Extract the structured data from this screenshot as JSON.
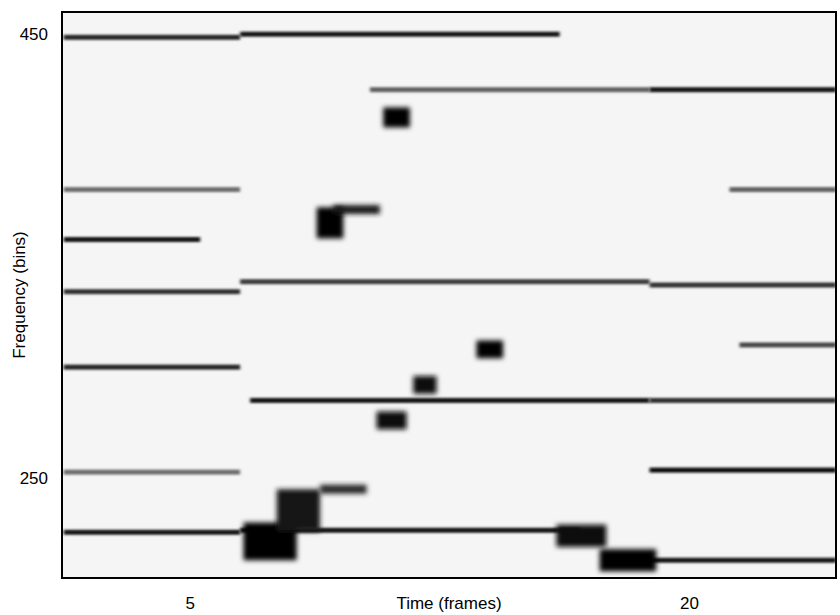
{
  "chart_data": {
    "type": "spectrogram",
    "x_label": "Time (frames)",
    "y_label": "Frequency (bins)",
    "xlim": [
      1.15,
      24.4
    ],
    "ylim": [
      205,
      460
    ],
    "xticks": [
      5,
      20
    ],
    "yticks": [
      250,
      450
    ],
    "color": "#000000",
    "tracks": [
      {
        "x": [
          1.2,
          6.5
        ],
        "y": 448.6,
        "level": 0.85
      },
      {
        "x": [
          1.2,
          6.5
        ],
        "y": 380,
        "level": 0.55
      },
      {
        "x": [
          1.2,
          5.3
        ],
        "y": 357.5,
        "level": 0.9
      },
      {
        "x": [
          1.2,
          6.5
        ],
        "y": 334,
        "level": 0.8
      },
      {
        "x": [
          1.2,
          6.5
        ],
        "y": 300,
        "level": 0.85
      },
      {
        "x": [
          1.2,
          6.5
        ],
        "y": 252.7,
        "level": 0.55
      },
      {
        "x": [
          1.2,
          6.5
        ],
        "y": 225.6,
        "level": 0.9
      },
      {
        "x": [
          6.5,
          16.1
        ],
        "y": 450,
        "level": 0.9
      },
      {
        "x": [
          10.4,
          18.8
        ],
        "y": 425,
        "level": 0.6
      },
      {
        "x": [
          6.5,
          18.8
        ],
        "y": 338.5,
        "level": 0.75
      },
      {
        "x": [
          6.8,
          18.8
        ],
        "y": 285,
        "level": 0.9
      },
      {
        "x": [
          6.5,
          16.7
        ],
        "y": 226.5,
        "level": 0.9
      },
      {
        "x": [
          18.8,
          24.4
        ],
        "y": 425,
        "level": 0.9
      },
      {
        "x": [
          21.2,
          24.4
        ],
        "y": 380,
        "level": 0.6
      },
      {
        "x": [
          18.8,
          24.4
        ],
        "y": 337,
        "level": 0.8
      },
      {
        "x": [
          21.5,
          24.4
        ],
        "y": 310,
        "level": 0.7
      },
      {
        "x": [
          18.8,
          24.4
        ],
        "y": 285,
        "level": 0.8
      },
      {
        "x": [
          18.8,
          24.4
        ],
        "y": 253.6,
        "level": 0.95
      },
      {
        "x": [
          18.8,
          24.4
        ],
        "y": 213,
        "level": 0.9
      }
    ],
    "blobs": [
      {
        "x": [
          10.8,
          11.6
        ],
        "y": [
          408,
          417
        ],
        "level": 1.0
      },
      {
        "x": [
          8.8,
          9.6
        ],
        "y": [
          358,
          372
        ],
        "level": 1.0
      },
      {
        "x": [
          9.3,
          10.7
        ],
        "y": [
          369,
          373
        ],
        "level": 0.9
      },
      {
        "x": [
          13.6,
          14.4
        ],
        "y": [
          304,
          312
        ],
        "level": 1.0
      },
      {
        "x": [
          11.7,
          12.4
        ],
        "y": [
          288,
          296
        ],
        "level": 0.95
      },
      {
        "x": [
          10.6,
          11.5
        ],
        "y": [
          272,
          280
        ],
        "level": 0.95
      },
      {
        "x": [
          6.6,
          8.2
        ],
        "y": [
          213,
          230
        ],
        "level": 1.0
      },
      {
        "x": [
          7.6,
          8.9
        ],
        "y": [
          226,
          245
        ],
        "level": 0.9
      },
      {
        "x": [
          8.9,
          10.3
        ],
        "y": [
          243,
          247
        ],
        "level": 0.85
      },
      {
        "x": [
          16.0,
          17.5
        ],
        "y": [
          219,
          229
        ],
        "level": 0.95
      },
      {
        "x": [
          17.3,
          19.0
        ],
        "y": [
          208,
          218
        ],
        "level": 1.0
      }
    ]
  }
}
